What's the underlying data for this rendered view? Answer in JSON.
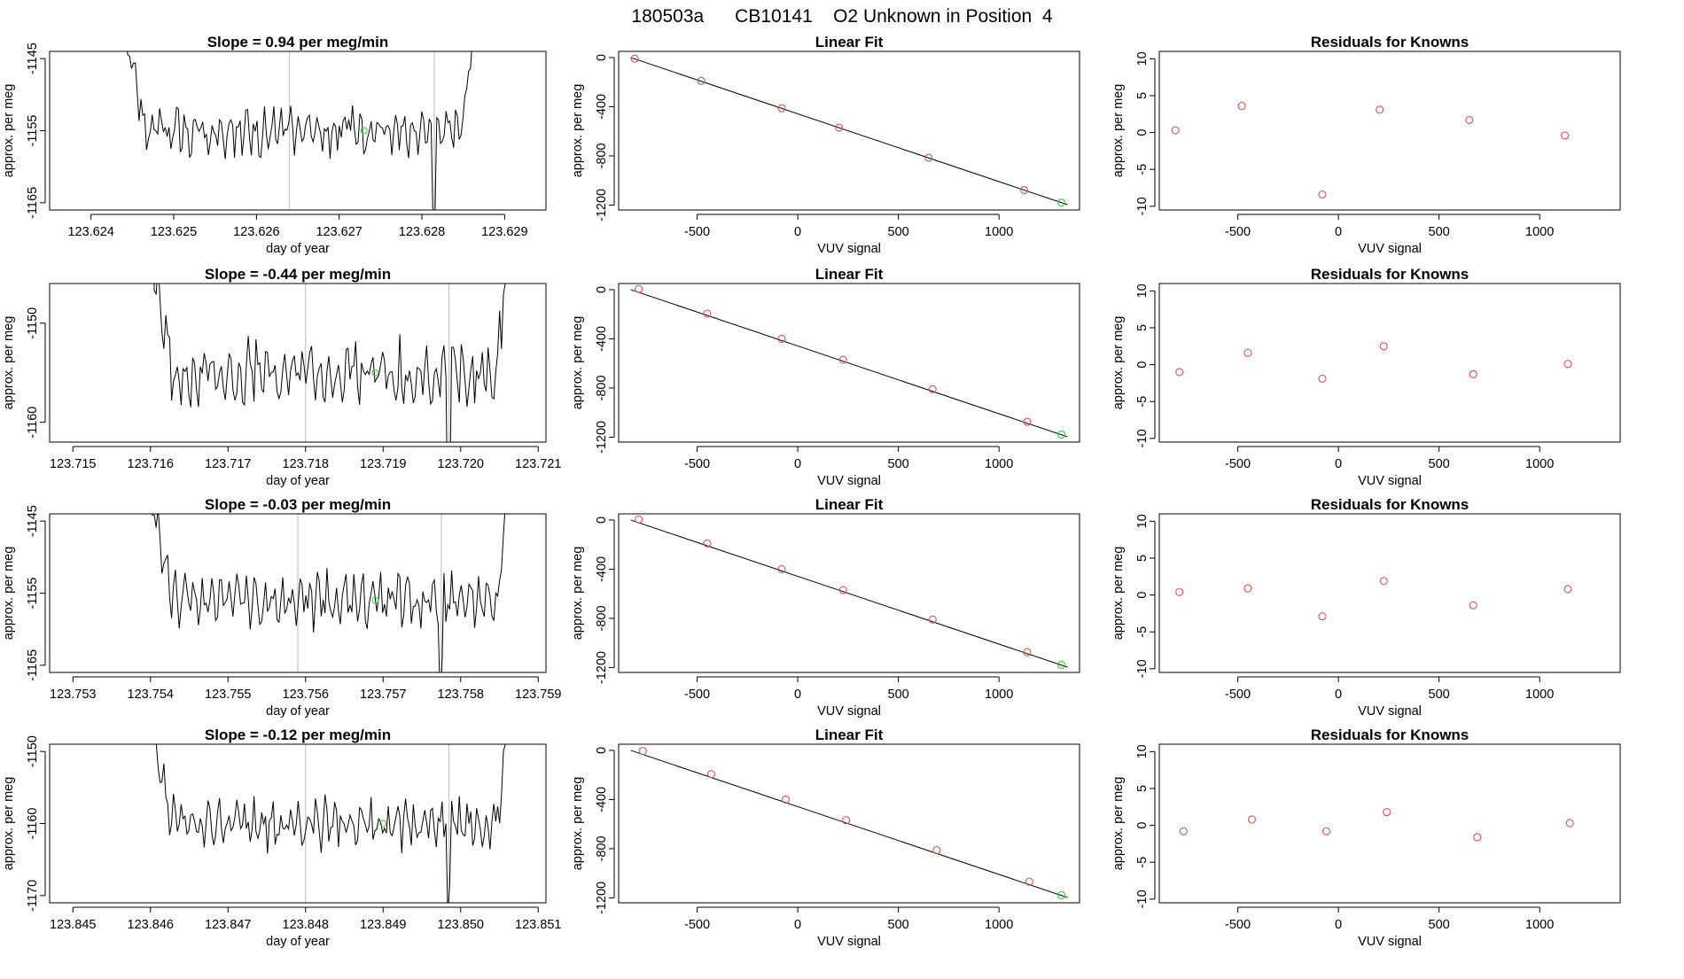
{
  "page": {
    "title": "180503a      CB10141    O2 Unknown in Position  4"
  },
  "colors": {
    "series_line": "#000000",
    "known_points": "#d9534f",
    "unknown_point": "#33cc33",
    "window_line": "#bbbbbb",
    "frame": "#000000"
  },
  "chart_data": [
    {
      "panel": "row1-trace",
      "type": "line",
      "title": "Slope =  0.94  per meg/min",
      "xlabel": "day of year",
      "ylabel": "approx. per meg",
      "xlim": [
        123.6235,
        123.6295
      ],
      "ylim": [
        -1166,
        -1144
      ],
      "xticks": [
        123.624,
        123.625,
        123.626,
        123.627,
        123.628,
        123.629
      ],
      "xtick_labels": [
        "123.624",
        "123.625",
        "123.626",
        "123.627",
        "123.628",
        "123.629"
      ],
      "yticks": [
        -1145,
        -1155,
        -1165
      ],
      "ytick_labels": [
        "-1145",
        "-1155",
        "-1165"
      ],
      "x_start": 123.6244,
      "x_end": 123.6287,
      "baseline": -1155,
      "amplitude": 2.8,
      "seed": 1,
      "dip_x": 123.62815,
      "window_lines": [
        123.6264,
        123.62815
      ],
      "unknown": {
        "x": 123.6273,
        "y": -1155
      }
    },
    {
      "panel": "row1-fit",
      "type": "scatter",
      "title": "Linear Fit",
      "xlabel": "VUV signal",
      "ylabel": "approx. per meg",
      "xlim": [
        -890,
        1400
      ],
      "ylim": [
        -1240,
        50
      ],
      "xticks": [
        -500,
        0,
        500,
        1000
      ],
      "xtick_labels": [
        "-500",
        "0",
        "500",
        "1000"
      ],
      "yticks": [
        0,
        -400,
        -800,
        -1200
      ],
      "ytick_labels": [
        "0",
        "-400",
        "-800",
        "-1200"
      ],
      "fit_line": {
        "x0": -830,
        "y0": 0,
        "x1": 1340,
        "y1": -1197
      },
      "knowns": [
        {
          "x": -810,
          "y": -9
        },
        {
          "x": -480,
          "y": -190
        },
        {
          "x": -80,
          "y": -412
        },
        {
          "x": 205,
          "y": -570
        },
        {
          "x": 650,
          "y": -815
        },
        {
          "x": 1125,
          "y": -1078
        }
      ],
      "unknown": {
        "x": 1310,
        "y": -1180
      }
    },
    {
      "panel": "row1-resid",
      "type": "scatter",
      "title": "Residuals for Knowns",
      "xlabel": "VUV signal",
      "ylabel": "approx. per meg",
      "xlim": [
        -890,
        1400
      ],
      "ylim": [
        -10.5,
        11
      ],
      "xticks": [
        -500,
        0,
        500,
        1000
      ],
      "xtick_labels": [
        "-500",
        "0",
        "500",
        "1000"
      ],
      "yticks": [
        10,
        5,
        0,
        -5,
        -10
      ],
      "ytick_labels": [
        "10",
        "5",
        "0",
        "-5",
        "-10"
      ],
      "knowns": [
        {
          "x": -810,
          "y": 0.3
        },
        {
          "x": -480,
          "y": 3.6
        },
        {
          "x": -80,
          "y": -8.4
        },
        {
          "x": 205,
          "y": 3.1
        },
        {
          "x": 650,
          "y": 1.7
        },
        {
          "x": 1125,
          "y": -0.4
        }
      ]
    },
    {
      "panel": "row2-trace",
      "type": "line",
      "title": "Slope =  -0.44  per meg/min",
      "xlabel": "day of year",
      "ylabel": "approx. per meg",
      "xlim": [
        123.7147,
        123.7211
      ],
      "ylim": [
        -1162,
        -1146
      ],
      "xticks": [
        123.715,
        123.716,
        123.717,
        123.718,
        123.719,
        123.72,
        123.721
      ],
      "xtick_labels": [
        "123.715",
        "123.716",
        "123.717",
        "123.718",
        "123.719",
        "123.720",
        "123.721"
      ],
      "yticks": [
        -1150,
        -1160
      ],
      "ytick_labels": [
        "-1150",
        "-1160"
      ],
      "x_start": 123.716,
      "x_end": 123.7207,
      "baseline": -1155,
      "amplitude": 2.6,
      "seed": 2,
      "dip_x": 123.71985,
      "window_lines": [
        123.718,
        123.71985
      ],
      "unknown": {
        "x": 123.7189,
        "y": -1155
      }
    },
    {
      "panel": "row2-fit",
      "type": "scatter",
      "title": "Linear Fit",
      "xlabel": "VUV signal",
      "ylabel": "approx. per meg",
      "xlim": [
        -890,
        1400
      ],
      "ylim": [
        -1240,
        50
      ],
      "xticks": [
        -500,
        0,
        500,
        1000
      ],
      "xtick_labels": [
        "-500",
        "0",
        "500",
        "1000"
      ],
      "yticks": [
        0,
        -400,
        -800,
        -1200
      ],
      "ytick_labels": [
        "0",
        "-400",
        "-800",
        "-1200"
      ],
      "fit_line": {
        "x0": -830,
        "y0": 0,
        "x1": 1340,
        "y1": -1197
      },
      "knowns": [
        {
          "x": -790,
          "y": 5
        },
        {
          "x": -450,
          "y": -195
        },
        {
          "x": -80,
          "y": -400
        },
        {
          "x": 225,
          "y": -570
        },
        {
          "x": 670,
          "y": -810
        },
        {
          "x": 1140,
          "y": -1075
        }
      ],
      "unknown": {
        "x": 1310,
        "y": -1178
      }
    },
    {
      "panel": "row2-resid",
      "type": "scatter",
      "title": "Residuals for Knowns",
      "xlabel": "VUV signal",
      "ylabel": "approx. per meg",
      "xlim": [
        -890,
        1400
      ],
      "ylim": [
        -10.5,
        11
      ],
      "xticks": [
        -500,
        0,
        500,
        1000
      ],
      "xtick_labels": [
        "-500",
        "0",
        "500",
        "1000"
      ],
      "yticks": [
        10,
        5,
        0,
        -5,
        -10
      ],
      "ytick_labels": [
        "10",
        "5",
        "0",
        "-5",
        "-10"
      ],
      "knowns": [
        {
          "x": -790,
          "y": -1.0
        },
        {
          "x": -450,
          "y": 1.6
        },
        {
          "x": -80,
          "y": -1.9
        },
        {
          "x": 225,
          "y": 2.5
        },
        {
          "x": 670,
          "y": -1.3
        },
        {
          "x": 1140,
          "y": 0.1
        }
      ]
    },
    {
      "panel": "row3-trace",
      "type": "line",
      "title": "Slope =  -0.03  per meg/min",
      "xlabel": "day of year",
      "ylabel": "approx. per meg",
      "xlim": [
        123.7527,
        123.7591
      ],
      "ylim": [
        -1166,
        -1144
      ],
      "xticks": [
        123.753,
        123.754,
        123.755,
        123.756,
        123.757,
        123.758,
        123.759
      ],
      "xtick_labels": [
        "123.753",
        "123.754",
        "123.755",
        "123.756",
        "123.757",
        "123.758",
        "123.759"
      ],
      "yticks": [
        -1145,
        -1155,
        -1165
      ],
      "ytick_labels": [
        "-1145",
        "-1155",
        "-1165"
      ],
      "x_start": 123.754,
      "x_end": 123.7587,
      "baseline": -1156,
      "amplitude": 3.0,
      "seed": 3,
      "dip_x": 123.75775,
      "window_lines": [
        123.7559,
        123.75775
      ],
      "unknown": {
        "x": 123.7569,
        "y": -1156
      }
    },
    {
      "panel": "row3-fit",
      "type": "scatter",
      "title": "Linear Fit",
      "xlabel": "VUV signal",
      "ylabel": "approx. per meg",
      "xlim": [
        -890,
        1400
      ],
      "ylim": [
        -1240,
        50
      ],
      "xticks": [
        -500,
        0,
        500,
        1000
      ],
      "xtick_labels": [
        "-500",
        "0",
        "500",
        "1000"
      ],
      "yticks": [
        0,
        -400,
        -800,
        -1200
      ],
      "ytick_labels": [
        "0",
        "-400",
        "-800",
        "-1200"
      ],
      "fit_line": {
        "x0": -830,
        "y0": 0,
        "x1": 1340,
        "y1": -1197
      },
      "knowns": [
        {
          "x": -790,
          "y": 5
        },
        {
          "x": -450,
          "y": -190
        },
        {
          "x": -80,
          "y": -400
        },
        {
          "x": 225,
          "y": -570
        },
        {
          "x": 670,
          "y": -810
        },
        {
          "x": 1140,
          "y": -1075
        }
      ],
      "unknown": {
        "x": 1310,
        "y": -1178
      }
    },
    {
      "panel": "row3-resid",
      "type": "scatter",
      "title": "Residuals for Knowns",
      "xlabel": "VUV signal",
      "ylabel": "approx. per meg",
      "xlim": [
        -890,
        1400
      ],
      "ylim": [
        -10.5,
        11
      ],
      "xticks": [
        -500,
        0,
        500,
        1000
      ],
      "xtick_labels": [
        "-500",
        "0",
        "500",
        "1000"
      ],
      "yticks": [
        10,
        5,
        0,
        -5,
        -10
      ],
      "ytick_labels": [
        "10",
        "5",
        "0",
        "-5",
        "-10"
      ],
      "knowns": [
        {
          "x": -790,
          "y": 0.4
        },
        {
          "x": -450,
          "y": 0.9
        },
        {
          "x": -80,
          "y": -2.9
        },
        {
          "x": 225,
          "y": 1.9
        },
        {
          "x": 670,
          "y": -1.4
        },
        {
          "x": 1140,
          "y": 0.8
        }
      ]
    },
    {
      "panel": "row4-trace",
      "type": "line",
      "title": "Slope =  -0.12  per meg/min",
      "xlabel": "day of year",
      "ylabel": "approx. per meg",
      "xlim": [
        123.8447,
        123.8511
      ],
      "ylim": [
        -1171,
        -1149
      ],
      "xticks": [
        123.845,
        123.846,
        123.847,
        123.848,
        123.849,
        123.85,
        123.851
      ],
      "xtick_labels": [
        "123.845",
        "123.846",
        "123.847",
        "123.848",
        "123.849",
        "123.850",
        "123.851"
      ],
      "yticks": [
        -1150,
        -1160,
        -1170
      ],
      "ytick_labels": [
        "-1150",
        "-1160",
        "-1170"
      ],
      "x_start": 123.846,
      "x_end": 123.8507,
      "baseline": -1160,
      "amplitude": 2.8,
      "seed": 4,
      "dip_x": 123.84985,
      "window_lines": [
        123.848,
        123.84985
      ],
      "unknown": {
        "x": 123.849,
        "y": -1160
      }
    },
    {
      "panel": "row4-fit",
      "type": "scatter",
      "title": "Linear Fit",
      "xlabel": "VUV signal",
      "ylabel": "approx. per meg",
      "xlim": [
        -890,
        1400
      ],
      "ylim": [
        -1240,
        50
      ],
      "xticks": [
        -500,
        0,
        500,
        1000
      ],
      "xtick_labels": [
        "-500",
        "0",
        "500",
        "1000"
      ],
      "yticks": [
        0,
        -400,
        -800,
        -1200
      ],
      "ytick_labels": [
        "0",
        "-400",
        "-800",
        "-1200"
      ],
      "fit_line": {
        "x0": -830,
        "y0": 0,
        "x1": 1340,
        "y1": -1197
      },
      "knowns": [
        {
          "x": -770,
          "y": -5
        },
        {
          "x": -430,
          "y": -193
        },
        {
          "x": -60,
          "y": -400
        },
        {
          "x": 240,
          "y": -568
        },
        {
          "x": 690,
          "y": -812
        },
        {
          "x": 1150,
          "y": -1068
        }
      ],
      "unknown": {
        "x": 1310,
        "y": -1178
      }
    },
    {
      "panel": "row4-resid",
      "type": "scatter",
      "title": "Residuals for Knowns",
      "xlabel": "VUV signal",
      "ylabel": "approx. per meg",
      "xlim": [
        -890,
        1400
      ],
      "ylim": [
        -10.5,
        11
      ],
      "xticks": [
        -500,
        0,
        500,
        1000
      ],
      "xtick_labels": [
        "-500",
        "0",
        "500",
        "1000"
      ],
      "yticks": [
        10,
        5,
        0,
        -5,
        -10
      ],
      "ytick_labels": [
        "10",
        "5",
        "0",
        "-5",
        "-10"
      ],
      "knowns": [
        {
          "x": -770,
          "y": -0.8
        },
        {
          "x": -430,
          "y": 0.8
        },
        {
          "x": -60,
          "y": -0.8
        },
        {
          "x": 240,
          "y": 1.8
        },
        {
          "x": 690,
          "y": -1.6
        },
        {
          "x": 1150,
          "y": 0.3
        }
      ]
    }
  ]
}
